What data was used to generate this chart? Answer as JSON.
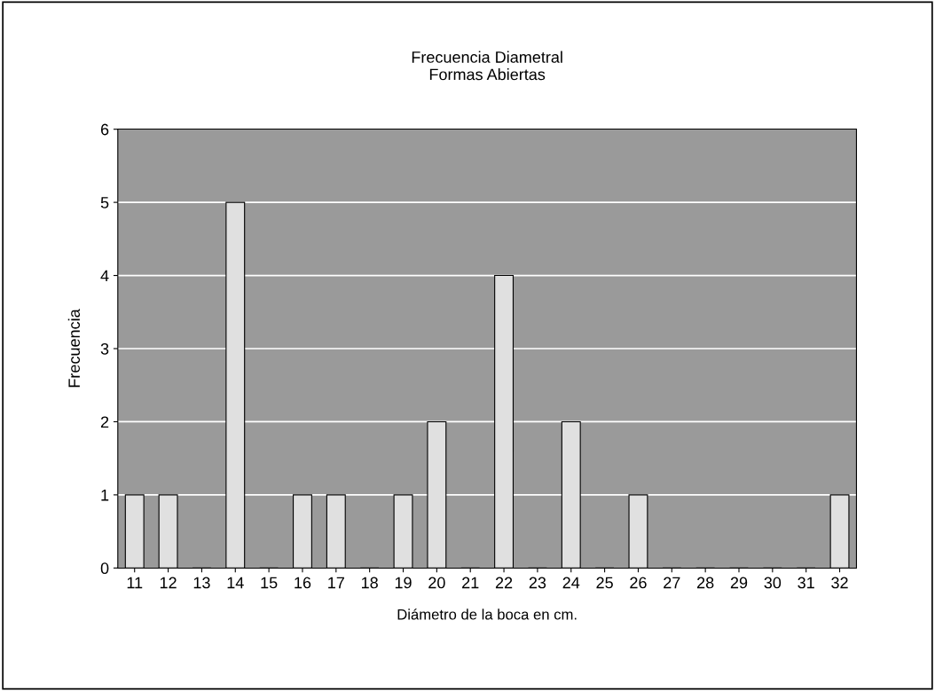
{
  "chart_data": {
    "type": "bar",
    "title": "Frecuencia Diametral\nFormas Abiertas",
    "xlabel": "Diámetro de la boca en cm.",
    "ylabel": "Frecuencia",
    "categories": [
      "11",
      "12",
      "13",
      "14",
      "15",
      "16",
      "17",
      "18",
      "19",
      "20",
      "21",
      "22",
      "23",
      "24",
      "25",
      "26",
      "27",
      "28",
      "29",
      "30",
      "31",
      "32"
    ],
    "values": [
      1,
      1,
      0,
      5,
      0,
      1,
      1,
      0,
      1,
      2,
      0,
      4,
      0,
      2,
      0,
      1,
      0,
      0,
      0,
      0,
      0,
      1
    ],
    "color": "#e0e0e0",
    "ylim": [
      0,
      6
    ],
    "yticks": [
      0,
      1,
      2,
      3,
      4,
      5,
      6
    ],
    "grid": "y",
    "legend": false
  }
}
